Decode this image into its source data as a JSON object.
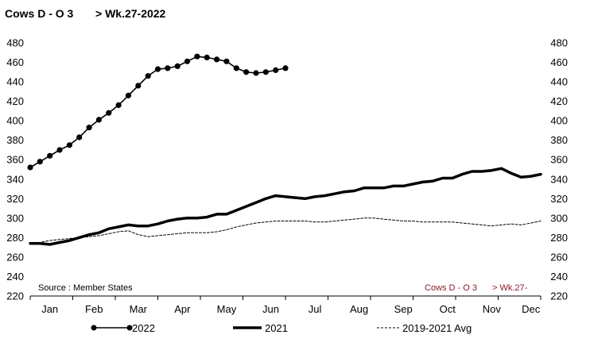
{
  "header": {
    "title": "Cows D - O 3",
    "period": "> Wk.27-2022"
  },
  "source_note": "Source : Member States",
  "watermark": {
    "title": "Cows D - O 3",
    "period": "> Wk.27-"
  },
  "colors": {
    "line": "#000000",
    "watermark": "#8B1A2B",
    "axis": "#000000"
  },
  "chart_data": {
    "type": "line",
    "ylim": [
      220,
      480
    ],
    "yticks": [
      220,
      240,
      260,
      280,
      300,
      320,
      340,
      360,
      380,
      400,
      420,
      440,
      460,
      480
    ],
    "xlim": [
      1,
      53
    ],
    "months": [
      {
        "label": "Jan",
        "week": 3
      },
      {
        "label": "Feb",
        "week": 7.5
      },
      {
        "label": "Mar",
        "week": 12
      },
      {
        "label": "Apr",
        "week": 16.5
      },
      {
        "label": "May",
        "week": 21
      },
      {
        "label": "Jun",
        "week": 25.5
      },
      {
        "label": "Jul",
        "week": 30
      },
      {
        "label": "Aug",
        "week": 34.5
      },
      {
        "label": "Sep",
        "week": 39
      },
      {
        "label": "Oct",
        "week": 43.5
      },
      {
        "label": "Nov",
        "week": 48
      },
      {
        "label": "Dec",
        "week": 52
      }
    ],
    "grid": false,
    "legend_position": "bottom",
    "series": [
      {
        "name": "2022",
        "style": "line-markers",
        "weeks": [
          1,
          2,
          3,
          4,
          5,
          6,
          7,
          8,
          9,
          10,
          11,
          12,
          13,
          14,
          15,
          16,
          17,
          18,
          19,
          20,
          21,
          22,
          23,
          24,
          25,
          26,
          27
        ],
        "values": [
          352,
          358,
          364,
          370,
          375,
          383,
          393,
          401,
          408,
          416,
          426,
          436,
          446,
          453,
          454,
          456,
          461,
          466,
          465,
          463,
          461,
          454,
          450,
          449,
          450,
          452,
          454
        ]
      },
      {
        "name": "2021",
        "style": "thick",
        "weeks": [
          1,
          2,
          3,
          4,
          5,
          6,
          7,
          8,
          9,
          10,
          11,
          12,
          13,
          14,
          15,
          16,
          17,
          18,
          19,
          20,
          21,
          22,
          23,
          24,
          25,
          26,
          27,
          28,
          29,
          30,
          31,
          32,
          33,
          34,
          35,
          36,
          37,
          38,
          39,
          40,
          41,
          42,
          43,
          44,
          45,
          46,
          47,
          48,
          49,
          50,
          51,
          52,
          53
        ],
        "values": [
          274,
          274,
          273,
          275,
          277,
          280,
          283,
          285,
          289,
          291,
          293,
          292,
          292,
          294,
          297,
          299,
          300,
          300,
          301,
          304,
          304,
          308,
          312,
          316,
          320,
          323,
          322,
          321,
          320,
          322,
          323,
          325,
          327,
          328,
          331,
          331,
          331,
          333,
          333,
          335,
          337,
          338,
          341,
          341,
          345,
          348,
          348,
          349,
          351,
          346,
          342,
          343,
          345
        ]
      },
      {
        "name": "2019-2021 Avg",
        "style": "dashed",
        "weeks": [
          1,
          2,
          3,
          4,
          5,
          6,
          7,
          8,
          9,
          10,
          11,
          12,
          13,
          14,
          15,
          16,
          17,
          18,
          19,
          20,
          21,
          22,
          23,
          24,
          25,
          26,
          27,
          28,
          29,
          30,
          31,
          32,
          33,
          34,
          35,
          36,
          37,
          38,
          39,
          40,
          41,
          42,
          43,
          44,
          45,
          46,
          47,
          48,
          49,
          50,
          51,
          52,
          53
        ],
        "values": [
          274,
          275,
          277,
          278,
          279,
          280,
          281,
          282,
          284,
          286,
          287,
          283,
          281,
          282,
          283,
          284,
          285,
          285,
          285,
          286,
          288,
          291,
          293,
          295,
          296,
          297,
          297,
          297,
          297,
          296,
          296,
          297,
          298,
          299,
          300,
          300,
          299,
          298,
          297,
          297,
          296,
          296,
          296,
          296,
          295,
          294,
          293,
          292,
          293,
          294,
          293,
          295,
          297
        ]
      }
    ]
  }
}
